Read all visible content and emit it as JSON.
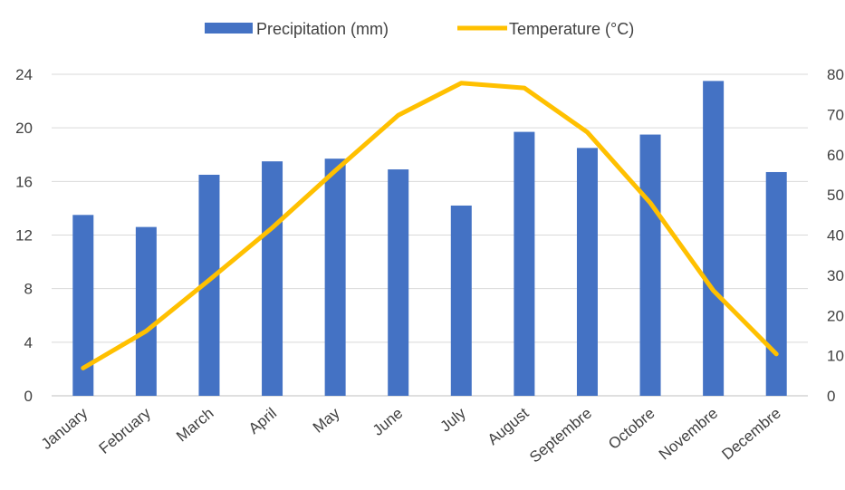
{
  "chart_data": {
    "type": "bar-line-combo",
    "categories": [
      "January",
      "February",
      "March",
      "April",
      "May",
      "June",
      "July",
      "August",
      "Septembre",
      "Octobre",
      "Novembre",
      "Decembre"
    ],
    "series": [
      {
        "name": "Precipitation (mm)",
        "type": "bar",
        "axis": "left",
        "color": "#4472C4",
        "values": [
          13.5,
          12.6,
          16.5,
          17.5,
          17.7,
          16.9,
          14.2,
          19.7,
          18.5,
          19.5,
          23.5,
          16.7
        ]
      },
      {
        "name": "Temperature (°C)",
        "type": "line",
        "axis": "right",
        "color": "#FFC000",
        "values": [
          6.9,
          16.1,
          28.8,
          41.8,
          56.0,
          69.8,
          77.8,
          76.6,
          65.6,
          48.0,
          26.2,
          10.4
        ]
      }
    ],
    "y_left": {
      "min": 0,
      "max": 24,
      "ticks": [
        0,
        4,
        8,
        12,
        16,
        20,
        24
      ]
    },
    "y_right": {
      "min": 0,
      "max": 80,
      "ticks": [
        0,
        10,
        20,
        30,
        40,
        50,
        60,
        70,
        80
      ]
    },
    "grid": true,
    "legend": "top-center"
  }
}
